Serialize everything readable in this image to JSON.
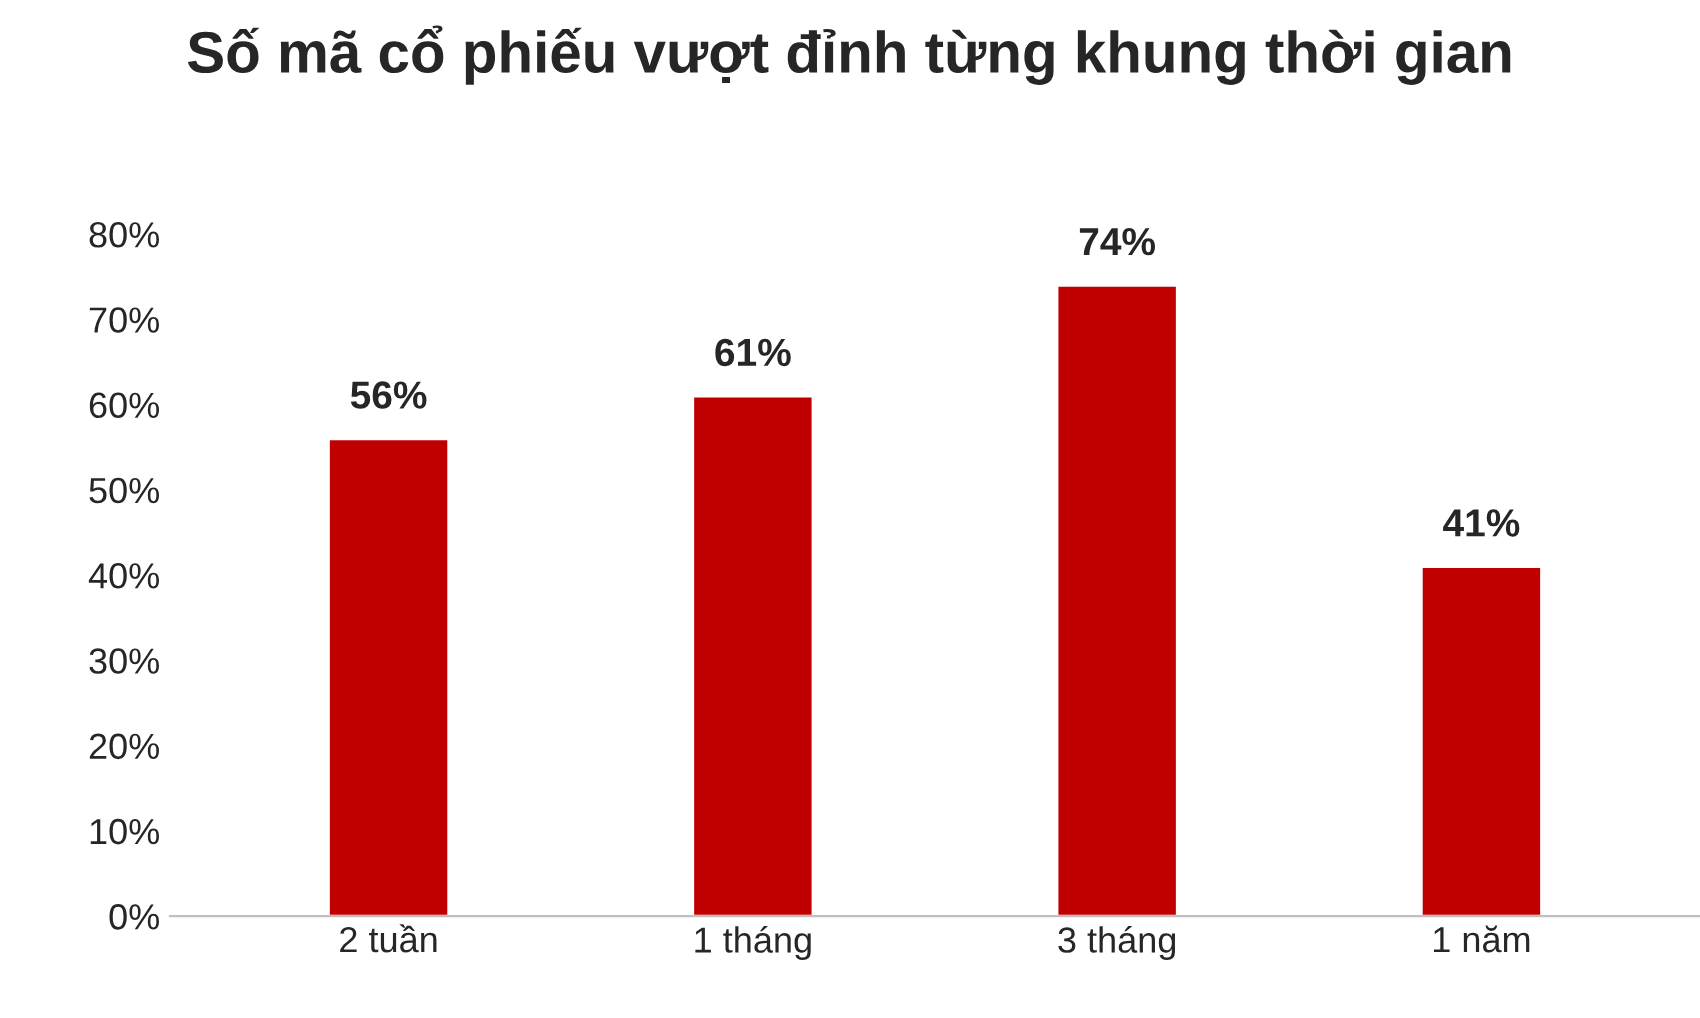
{
  "chart_data": {
    "type": "bar",
    "title": "Số mã cổ phiếu vượt đỉnh từng khung thời gian",
    "categories": [
      "2 tuần",
      "1 tháng",
      "3 tháng",
      "1 năm"
    ],
    "values": [
      56,
      61,
      74,
      41
    ],
    "color": "#c00000",
    "value_labels": [
      "56%",
      "61%",
      "74%",
      "41%"
    ],
    "ylim": [
      0,
      80
    ],
    "yticks": [
      {
        "value": 0,
        "label": "0%"
      },
      {
        "value": 10,
        "label": "10%"
      },
      {
        "value": 20,
        "label": "20%"
      },
      {
        "value": 30,
        "label": "30%"
      },
      {
        "value": 40,
        "label": "40%"
      },
      {
        "value": 50,
        "label": "50%"
      },
      {
        "value": 60,
        "label": "60%"
      },
      {
        "value": 70,
        "label": "70%"
      },
      {
        "value": 80,
        "label": "80%"
      }
    ],
    "grid": false,
    "legend": false
  }
}
